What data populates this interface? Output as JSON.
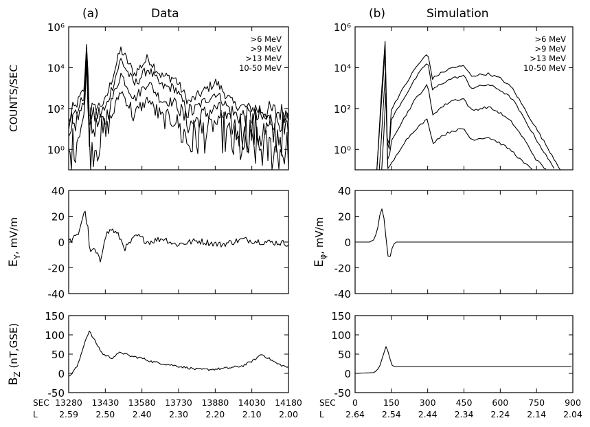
{
  "chart_data": [
    {
      "id": "a-counts",
      "type": "line",
      "panel": "(a)",
      "title": "Data",
      "ylabel": "COUNTS/SEC",
      "yscale": "log",
      "ylim": [
        0.1,
        1000000
      ],
      "xlim": [
        13230,
        14200
      ],
      "yticks": [
        {
          "v": 1,
          "label": "10⁰"
        },
        {
          "v": 100,
          "label": "10²"
        },
        {
          "v": 10000,
          "label": "10⁴"
        },
        {
          "v": 1000000,
          "label": "10⁶"
        }
      ],
      "legend": [
        ">6 MeV",
        ">9 MeV",
        ">13 MeV",
        "10-50 MeV"
      ],
      "legend_position": "top-right",
      "peaks": [
        13310,
        13460,
        13580,
        13700,
        13880
      ],
      "series": [
        {
          "name": ">6 MeV",
          "baseline": 20,
          "x": [
            13230,
            13300,
            13310,
            13320,
            13390,
            13460,
            13520,
            13580,
            13640,
            13700,
            13760,
            13880,
            13960,
            14100,
            14200
          ],
          "y": [
            25,
            1000,
            400000,
            80,
            200,
            80000,
            5000,
            30000,
            4000,
            3000,
            200,
            2000,
            150,
            80,
            60
          ]
        },
        {
          "name": ">9 MeV",
          "baseline": 8,
          "x": [
            13230,
            13300,
            13310,
            13320,
            13390,
            13460,
            13520,
            13580,
            13640,
            13700,
            13760,
            13880,
            13960,
            14100,
            14200
          ],
          "y": [
            10,
            500,
            250000,
            30,
            80,
            25000,
            1500,
            9000,
            1200,
            1000,
            60,
            600,
            50,
            30,
            20
          ]
        },
        {
          "name": ">13 MeV",
          "baseline": 2,
          "x": [
            13230,
            13300,
            13310,
            13320,
            13390,
            13460,
            13520,
            13580,
            13640,
            13700,
            13760,
            13880,
            13960,
            14100,
            14200
          ],
          "y": [
            3,
            200,
            100000,
            8,
            25,
            5000,
            300,
            2000,
            250,
            200,
            15,
            120,
            10,
            6,
            5
          ]
        },
        {
          "name": "10-50 MeV",
          "baseline": 0.3,
          "x": [
            13230,
            13300,
            13310,
            13320,
            13390,
            13460,
            13520,
            13580,
            13640,
            13700,
            13760,
            13880,
            13960,
            14100,
            14200
          ],
          "y": [
            0.3,
            50,
            30000,
            1,
            5,
            800,
            40,
            300,
            30,
            30,
            2,
            20,
            1.5,
            1,
            0.8
          ]
        }
      ]
    },
    {
      "id": "a-ey",
      "type": "line",
      "ylabel": "E",
      "ylabel_sub": "Y",
      "ylabel_rest": ", mV/m",
      "ylim": [
        -40,
        40
      ],
      "xlim": [
        13230,
        14200
      ],
      "yticks": [
        {
          "v": -40,
          "label": "-40"
        },
        {
          "v": -20,
          "label": "-20"
        },
        {
          "v": 0,
          "label": "0"
        },
        {
          "v": 20,
          "label": "20"
        },
        {
          "v": 40,
          "label": "40"
        }
      ],
      "series": [
        {
          "x": [
            13230,
            13270,
            13300,
            13315,
            13325,
            13340,
            13370,
            13390,
            13420,
            13450,
            13480,
            13530,
            13580,
            13650,
            13700,
            13800,
            13900,
            14000,
            14100,
            14200
          ],
          "y": [
            0,
            5,
            25,
            10,
            -10,
            -5,
            -15,
            5,
            10,
            5,
            -5,
            5,
            0,
            3,
            -2,
            1,
            -2,
            2,
            0,
            -1
          ]
        }
      ]
    },
    {
      "id": "a-bz",
      "type": "line",
      "ylabel": "B",
      "ylabel_sub": "Z",
      "ylabel_rest": " (nT,GSE)",
      "ylim": [
        -50,
        150
      ],
      "xlim": [
        13230,
        14200
      ],
      "yticks": [
        {
          "v": -50,
          "label": "-50"
        },
        {
          "v": 0,
          "label": "0"
        },
        {
          "v": 50,
          "label": "50"
        },
        {
          "v": 100,
          "label": "100"
        },
        {
          "v": 150,
          "label": "150"
        }
      ],
      "series": [
        {
          "x": [
            13230,
            13270,
            13300,
            13320,
            13340,
            13380,
            13420,
            13460,
            13500,
            13550,
            13600,
            13650,
            13700,
            13750,
            13800,
            13850,
            13900,
            13950,
            14000,
            14050,
            14080,
            14110,
            14150,
            14200
          ],
          "y": [
            -10,
            20,
            80,
            110,
            90,
            50,
            40,
            55,
            45,
            40,
            30,
            25,
            20,
            15,
            10,
            10,
            12,
            15,
            20,
            35,
            50,
            40,
            25,
            15
          ]
        }
      ],
      "xlabel_rows": [
        {
          "label": "SEC",
          "ticks": [
            "13280",
            "13430",
            "13580",
            "13730",
            "13880",
            "14030",
            "14180"
          ]
        },
        {
          "label": "L",
          "ticks": [
            "2.59",
            "2.50",
            "2.40",
            "2.30",
            "2.20",
            "2.10",
            "2.00"
          ]
        }
      ]
    },
    {
      "id": "b-counts",
      "type": "line",
      "panel": "(b)",
      "title": "Simulation",
      "yscale": "log",
      "ylim": [
        0.1,
        1000000
      ],
      "xlim": [
        0,
        900
      ],
      "yticks": [
        {
          "v": 1,
          "label": "10⁰"
        },
        {
          "v": 100,
          "label": "10²"
        },
        {
          "v": 10000,
          "label": "10⁴"
        },
        {
          "v": 1000000,
          "label": "10⁶"
        }
      ],
      "legend": [
        ">6 MeV",
        ">9 MeV",
        ">13 MeV",
        "10-50 MeV"
      ],
      "legend_position": "top-right",
      "series": [
        {
          "name": ">6 MeV",
          "x": [
            90,
            110,
            125,
            135,
            150,
            200,
            250,
            300,
            320,
            350,
            400,
            450,
            480,
            550,
            600,
            650,
            700,
            750,
            800,
            850
          ],
          "y": [
            0.1,
            1000,
            300000,
            0.1,
            100,
            1000,
            10000,
            50000,
            3000,
            5000,
            10000,
            12000,
            4000,
            5000,
            3000,
            1000,
            100,
            10,
            1,
            0.1
          ]
        },
        {
          "name": ">9 MeV",
          "x": [
            90,
            110,
            125,
            135,
            150,
            200,
            250,
            300,
            320,
            350,
            400,
            450,
            480,
            550,
            600,
            650,
            700,
            750,
            800,
            830
          ],
          "y": [
            0.1,
            300,
            100000,
            0.1,
            30,
            300,
            3000,
            20000,
            800,
            1500,
            3000,
            4000,
            1000,
            1500,
            800,
            300,
            30,
            3,
            0.3,
            0.1
          ]
        },
        {
          "name": ">13 MeV",
          "x": [
            100,
            115,
            125,
            135,
            150,
            200,
            250,
            300,
            320,
            350,
            400,
            450,
            480,
            550,
            600,
            650,
            700,
            750,
            790
          ],
          "y": [
            0.1,
            50,
            10000,
            0.1,
            3,
            30,
            300,
            1500,
            50,
            100,
            250,
            300,
            80,
            120,
            60,
            20,
            3,
            0.3,
            0.1
          ]
        },
        {
          "name": "10-50 MeV",
          "x": [
            110,
            120,
            128,
            135,
            160,
            200,
            250,
            300,
            320,
            350,
            400,
            450,
            480,
            550,
            600,
            650,
            700,
            740
          ],
          "y": [
            0.1,
            10,
            1000,
            0.1,
            0.3,
            2,
            10,
            30,
            2,
            4,
            8,
            10,
            3,
            4,
            2,
            0.8,
            0.2,
            0.1
          ]
        }
      ]
    },
    {
      "id": "b-ephi",
      "type": "line",
      "ylabel": "E",
      "ylabel_sub": "φ",
      "ylabel_rest": ", mV/m",
      "ylim": [
        -40,
        40
      ],
      "xlim": [
        0,
        900
      ],
      "yticks": [
        {
          "v": -40,
          "label": "-40"
        },
        {
          "v": -20,
          "label": "-20"
        },
        {
          "v": 0,
          "label": "0"
        },
        {
          "v": 20,
          "label": "20"
        },
        {
          "v": 40,
          "label": "40"
        }
      ],
      "series": [
        {
          "x": [
            0,
            60,
            80,
            95,
            108,
            120,
            132,
            140,
            150,
            165,
            900
          ],
          "y": [
            0,
            0,
            2,
            12,
            28,
            18,
            -5,
            -16,
            -6,
            0,
            0
          ]
        }
      ]
    },
    {
      "id": "b-bz",
      "type": "line",
      "ylim": [
        -50,
        150
      ],
      "xlim": [
        0,
        900
      ],
      "yticks": [
        {
          "v": -50,
          "label": "-50"
        },
        {
          "v": 0,
          "label": "0"
        },
        {
          "v": 50,
          "label": "50"
        },
        {
          "v": 100,
          "label": "100"
        },
        {
          "v": 150,
          "label": "150"
        }
      ],
      "series": [
        {
          "x": [
            0,
            80,
            100,
            115,
            128,
            140,
            150,
            165,
            900
          ],
          "y": [
            0,
            2,
            15,
            45,
            70,
            50,
            22,
            17,
            17
          ]
        }
      ],
      "xlabel_rows": [
        {
          "label": "SEC",
          "ticks": [
            "0",
            "150",
            "300",
            "450",
            "600",
            "750",
            "900"
          ]
        },
        {
          "label": "L",
          "ticks": [
            "2.64",
            "2.54",
            "2.44",
            "2.34",
            "2.24",
            "2.14",
            "2.04"
          ]
        }
      ]
    }
  ]
}
